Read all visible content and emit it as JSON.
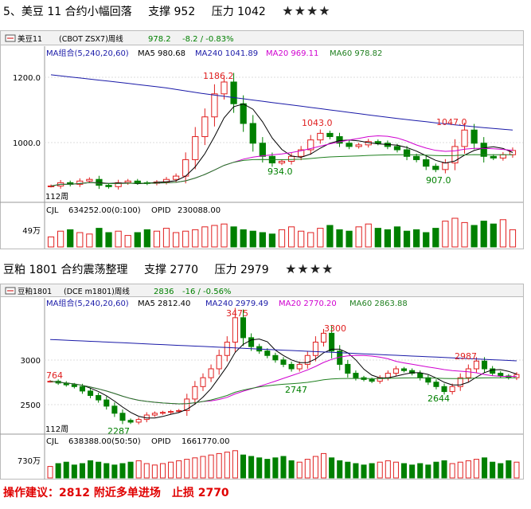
{
  "charts": [
    {
      "heading": {
        "title": "5、美豆 11 合约小幅回落",
        "support": "支撑 952",
        "pressure": "压力 1042",
        "stars": "★★★★"
      },
      "toolbar": {
        "name": "美豆11",
        "exchange": "(CBOT ZSX7)周线",
        "price": "978.2",
        "change": "-8.2 / -0.83%"
      },
      "ma_legend": {
        "group": "MA组合(5,240,20,60)",
        "ma5": "MA5 980.68",
        "ma240": "MA240 1041.89",
        "ma20": "MA20 969.11",
        "ma60": "MA60 978.82"
      },
      "y_ticks": [
        "1200.0",
        "1000.0"
      ],
      "annotations": [
        "1186.2",
        "1043.0",
        "1047.0",
        "934.0",
        "907.0"
      ],
      "period_label": "112周",
      "volume_legend": {
        "cjl": "CJL",
        "cjl_value": "634252.00(0:100)",
        "opid": "OPID",
        "opid_value": "230088.00"
      },
      "volume_tick": "49万"
    },
    {
      "heading": {
        "title": "豆粕 1801 合约震荡整理",
        "support": "支撑 2770",
        "pressure": "压力 2979",
        "stars": "★★★★"
      },
      "toolbar": {
        "name": "豆粕1801",
        "exchange": "(DCE m1801)周线",
        "price": "2836",
        "change": "-16 / -0.56%"
      },
      "ma_legend": {
        "group": "MA组合(5,240,20,60)",
        "ma5": "MA5 2812.40",
        "ma240": "MA240 2979.49",
        "ma20": "MA20 2770.20",
        "ma60": "MA60 2863.88"
      },
      "y_ticks": [
        "3000",
        "2500"
      ],
      "annotations": [
        "3475",
        "3300",
        "2987",
        "2747",
        "2644",
        "764",
        "2287"
      ],
      "period_label": "112周",
      "volume_legend": {
        "cjl": "CJL",
        "cjl_value": "638388.00(50:50)",
        "opid": "OPID",
        "opid_value": "1661770.00"
      },
      "volume_tick": "730万"
    }
  ],
  "advice": "操作建议：2812 附近多单进场　止损 2770",
  "colors": {
    "up": "#e02020",
    "down": "#008000",
    "ma5": "#000000",
    "ma240": "#1a1aa8",
    "ma20": "#d000d0",
    "ma60": "#208020",
    "grid": "#c8c8c8",
    "axis": "#666666",
    "advice": "#e00000"
  },
  "chart_data": [
    {
      "type": "line",
      "title": "美豆11 (CBOT ZSX7)周线",
      "y_ticks": [
        1200,
        1000
      ],
      "last_price": 978.2,
      "ma240": [
        1208,
        1195,
        1182,
        1168,
        1150,
        1135,
        1120,
        1105,
        1090,
        1075,
        1062,
        1050,
        1040
      ],
      "highlights": [
        {
          "label": "1186.2",
          "value": 1186.2
        },
        {
          "label": "1043.0",
          "value": 1043.0
        },
        {
          "label": "1047.0",
          "value": 1047.0
        },
        {
          "label": "934.0",
          "value": 934.0
        },
        {
          "label": "907.0",
          "value": 907.0
        }
      ],
      "close": [
        870,
        880,
        875,
        885,
        890,
        872,
        868,
        880,
        885,
        880,
        878,
        882,
        890,
        900,
        950,
        1020,
        1080,
        1150,
        1186,
        1120,
        1060,
        1000,
        960,
        940,
        945,
        960,
        980,
        1010,
        1030,
        1020,
        1000,
        990,
        995,
        1005,
        1000,
        990,
        980,
        960,
        950,
        930,
        920,
        940,
        990,
        1040,
        1000,
        960,
        955,
        965,
        978
      ],
      "volume": [
        0.35,
        0.55,
        0.6,
        0.5,
        0.45,
        0.65,
        0.5,
        0.55,
        0.4,
        0.5,
        0.6,
        0.55,
        0.65,
        0.5,
        0.55,
        0.6,
        0.7,
        0.75,
        0.8,
        0.7,
        0.6,
        0.55,
        0.5,
        0.45,
        0.6,
        0.7,
        0.55,
        0.5,
        0.65,
        0.75,
        0.6,
        0.55,
        0.7,
        0.8,
        0.65,
        0.6,
        0.7,
        0.55,
        0.6,
        0.5,
        0.65,
        0.9,
        1.0,
        0.85,
        0.75,
        0.9,
        0.8,
        0.95,
        0.6
      ]
    },
    {
      "type": "line",
      "title": "豆粕1801 (DCE m1801)周线",
      "y_ticks": [
        3000,
        2500
      ],
      "last_price": 2836,
      "highlights": [
        {
          "label": "3475",
          "value": 3475
        },
        {
          "label": "3300",
          "value": 3300
        },
        {
          "label": "2987",
          "value": 2987
        },
        {
          "label": "2747",
          "value": 2747
        },
        {
          "label": "2644",
          "value": 2644
        },
        {
          "label": "2287",
          "value": 2287
        }
      ],
      "close": [
        2760,
        2740,
        2720,
        2700,
        2650,
        2600,
        2550,
        2480,
        2400,
        2320,
        2300,
        2330,
        2380,
        2400,
        2410,
        2420,
        2430,
        2560,
        2700,
        2800,
        2900,
        3050,
        3200,
        3475,
        3250,
        3150,
        3100,
        3050,
        3000,
        2950,
        2900,
        2950,
        3050,
        3200,
        3300,
        3100,
        2950,
        2850,
        2800,
        2780,
        2760,
        2800,
        2850,
        2900,
        2880,
        2850,
        2800,
        2750,
        2700,
        2644,
        2700,
        2800,
        2900,
        2987,
        2900,
        2850,
        2820,
        2800,
        2836
      ],
      "volume": [
        0.4,
        0.5,
        0.55,
        0.45,
        0.5,
        0.6,
        0.55,
        0.5,
        0.45,
        0.5,
        0.55,
        0.6,
        0.5,
        0.45,
        0.5,
        0.55,
        0.6,
        0.65,
        0.7,
        0.75,
        0.8,
        0.85,
        0.9,
        0.95,
        0.8,
        0.75,
        0.7,
        0.65,
        0.7,
        0.75,
        0.6,
        0.55,
        0.65,
        0.75,
        0.85,
        0.7,
        0.6,
        0.55,
        0.5,
        0.45,
        0.5,
        0.55,
        0.6,
        0.55,
        0.5,
        0.45,
        0.5,
        0.45,
        0.55,
        0.6,
        0.5,
        0.55,
        0.6,
        0.65,
        0.7,
        0.55,
        0.5,
        0.6,
        0.55
      ]
    }
  ]
}
